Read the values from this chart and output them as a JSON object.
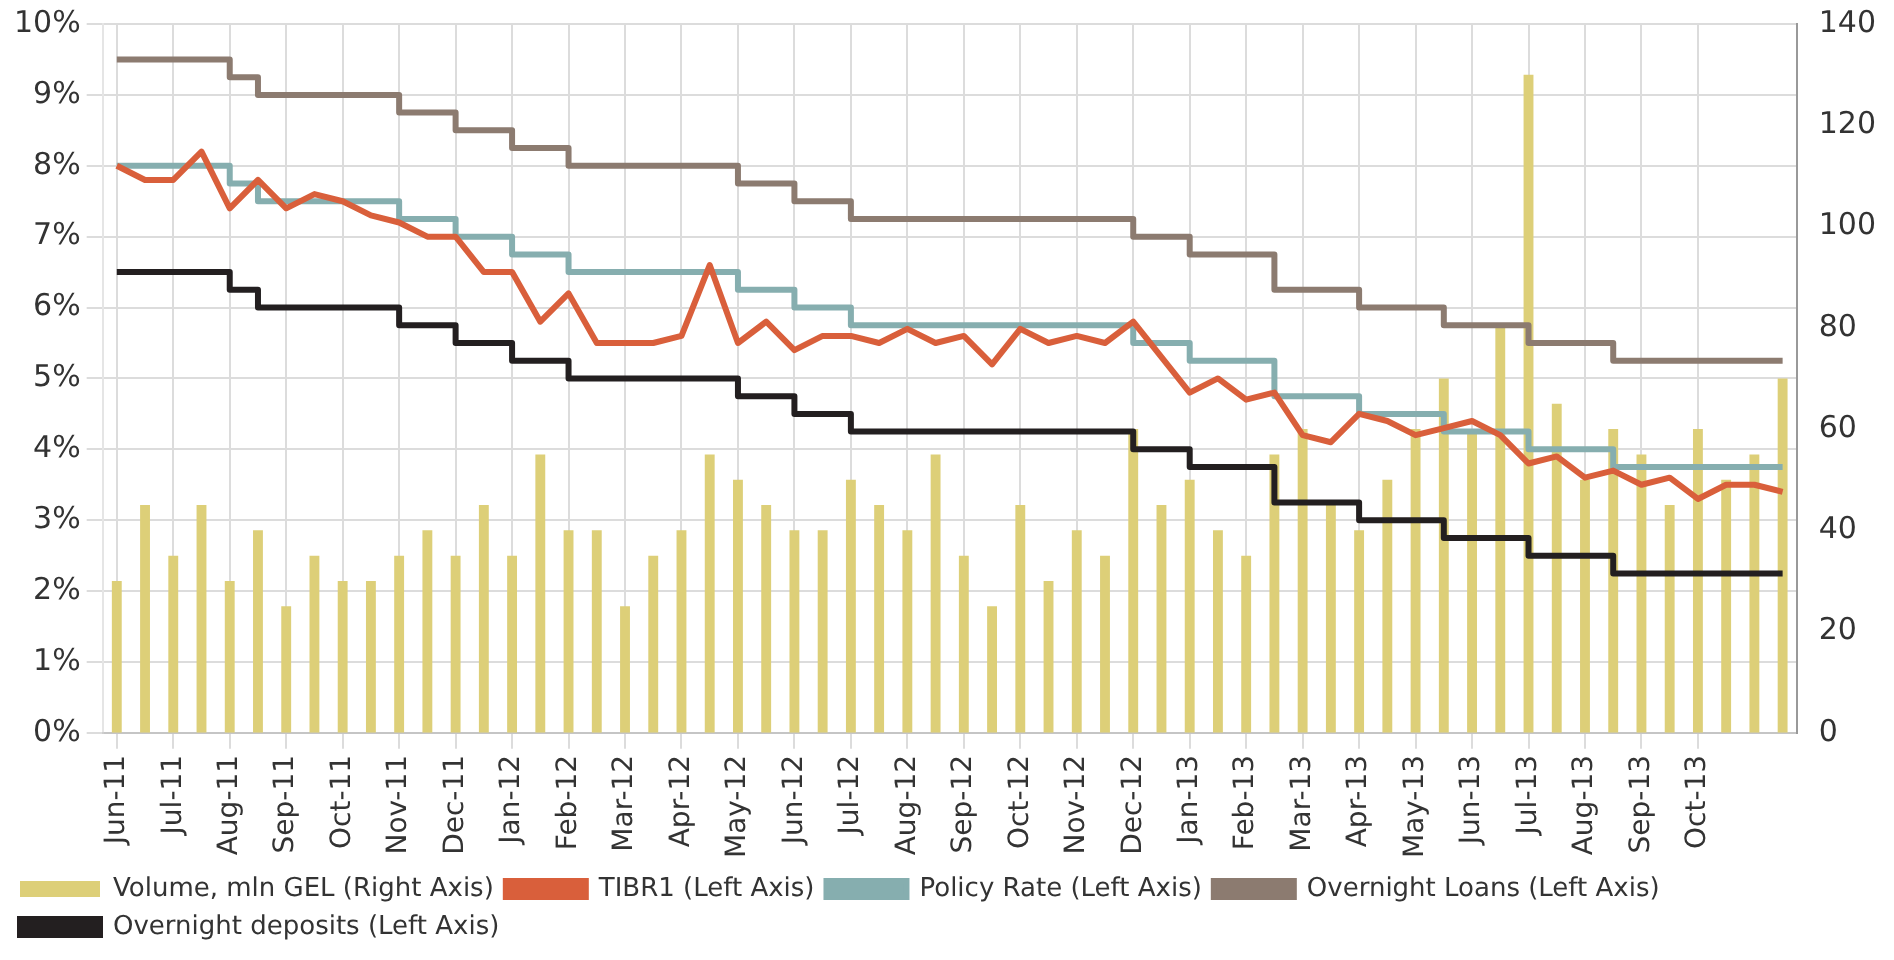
{
  "chart_data": {
    "type": "bar",
    "categories": [
      "Jun-11",
      null,
      "Jul-11",
      null,
      "Aug-11",
      null,
      "Sep-11",
      null,
      "Oct-11",
      null,
      "Nov-11",
      null,
      "Dec-11",
      null,
      "Jan-12",
      null,
      "Feb-12",
      null,
      "Mar-12",
      null,
      "Apr-12",
      null,
      "May-12",
      null,
      "Jun-12",
      null,
      "Jul-12",
      null,
      "Aug-12",
      null,
      "Sep-12",
      null,
      "Oct-12",
      null,
      "Nov-12",
      null,
      "Dec-12",
      null,
      "Jan-13",
      null,
      "Feb-13",
      null,
      "Mar-13",
      null,
      "Apr-13",
      null,
      "May-13",
      null,
      "Jun-13",
      null,
      "Jul-13",
      null,
      "Aug-13",
      null,
      "Sep-13",
      null,
      "Oct-13",
      null,
      null,
      null
    ],
    "series": [
      {
        "name": "Volume, mln GEL (Right Axis)",
        "axis": "y2",
        "color": "#ddcf78",
        "values": [
          30,
          45,
          35,
          45,
          30,
          40,
          25,
          35,
          30,
          30,
          35,
          40,
          35,
          45,
          35,
          55,
          40,
          40,
          25,
          35,
          40,
          55,
          50,
          45,
          40,
          40,
          50,
          45,
          40,
          55,
          35,
          25,
          45,
          30,
          40,
          35,
          60,
          45,
          50,
          40,
          35,
          55,
          60,
          45,
          40,
          50,
          60,
          70,
          60,
          80,
          130,
          65,
          50,
          60,
          55,
          45,
          60,
          50,
          55,
          70
        ]
      },
      {
        "name": "TIBR1 (Left Axis)",
        "type": "line",
        "color": "#d95f3b",
        "values": [
          8.0,
          7.8,
          7.8,
          8.2,
          7.4,
          7.8,
          7.4,
          7.6,
          7.5,
          7.3,
          7.2,
          7.0,
          7.0,
          6.5,
          6.5,
          5.8,
          6.2,
          5.5,
          5.5,
          5.5,
          5.6,
          6.6,
          5.5,
          5.8,
          5.4,
          5.6,
          5.6,
          5.5,
          5.7,
          5.5,
          5.6,
          5.2,
          5.7,
          5.5,
          5.6,
          5.5,
          5.8,
          5.3,
          4.8,
          5.0,
          4.7,
          4.8,
          4.2,
          4.1,
          4.5,
          4.4,
          4.2,
          4.3,
          4.4,
          4.2,
          3.8,
          3.9,
          3.6,
          3.7,
          3.5,
          3.6,
          3.3,
          3.5,
          3.5,
          3.4
        ]
      },
      {
        "name": "Policy Rate (Left Axis)",
        "type": "step",
        "color": "#86aeaf",
        "values": [
          8,
          8,
          8,
          8,
          7.75,
          7.5,
          7.5,
          7.5,
          7.5,
          7.5,
          7.25,
          7.25,
          7,
          7,
          6.75,
          6.75,
          6.5,
          6.5,
          6.5,
          6.5,
          6.5,
          6.5,
          6.25,
          6.25,
          6,
          6,
          5.75,
          5.75,
          5.75,
          5.75,
          5.75,
          5.75,
          5.75,
          5.75,
          5.75,
          5.75,
          5.5,
          5.5,
          5.25,
          5.25,
          5.25,
          4.75,
          4.75,
          4.75,
          4.5,
          4.5,
          4.5,
          4.25,
          4.25,
          4.25,
          4,
          4,
          4,
          3.75,
          3.75,
          3.75,
          3.75,
          3.75,
          3.75,
          3.75
        ]
      },
      {
        "name": "Overnight Loans (Left Axis)",
        "type": "step",
        "color": "#8c7b70",
        "values": [
          9.5,
          9.5,
          9.5,
          9.5,
          9.25,
          9,
          9,
          9,
          9,
          9,
          8.75,
          8.75,
          8.5,
          8.5,
          8.25,
          8.25,
          8,
          8,
          8,
          8,
          8,
          8,
          7.75,
          7.75,
          7.5,
          7.5,
          7.25,
          7.25,
          7.25,
          7.25,
          7.25,
          7.25,
          7.25,
          7.25,
          7.25,
          7.25,
          7,
          7,
          6.75,
          6.75,
          6.75,
          6.25,
          6.25,
          6.25,
          6,
          6,
          6,
          5.75,
          5.75,
          5.75,
          5.5,
          5.5,
          5.5,
          5.25,
          5.25,
          5.25,
          5.25,
          5.25,
          5.25,
          5.25
        ]
      },
      {
        "name": "Overnight deposits (Left Axis)",
        "type": "step",
        "color": "#231f20",
        "values": [
          6.5,
          6.5,
          6.5,
          6.5,
          6.25,
          6,
          6,
          6,
          6,
          6,
          5.75,
          5.75,
          5.5,
          5.5,
          5.25,
          5.25,
          5,
          5,
          5,
          5,
          5,
          5,
          4.75,
          4.75,
          4.5,
          4.5,
          4.25,
          4.25,
          4.25,
          4.25,
          4.25,
          4.25,
          4.25,
          4.25,
          4.25,
          4.25,
          4,
          4,
          3.75,
          3.75,
          3.75,
          3.25,
          3.25,
          3.25,
          3,
          3,
          3,
          2.75,
          2.75,
          2.75,
          2.5,
          2.5,
          2.5,
          2.25,
          2.25,
          2.25,
          2.25,
          2.25,
          2.25,
          2.25
        ]
      }
    ],
    "ylim": [
      0,
      10
    ],
    "yticks": [
      {
        "value": 0,
        "label": "0%"
      },
      {
        "value": 1,
        "label": "1%"
      },
      {
        "value": 2,
        "label": "2%"
      },
      {
        "value": 3,
        "label": "3%"
      },
      {
        "value": 4,
        "label": "4%"
      },
      {
        "value": 5,
        "label": "5%"
      },
      {
        "value": 6,
        "label": "6%"
      },
      {
        "value": 7,
        "label": "7%"
      },
      {
        "value": 8,
        "label": "8%"
      },
      {
        "value": 9,
        "label": "9%"
      },
      {
        "value": 10,
        "label": "10%"
      }
    ],
    "y2lim": [
      0,
      140
    ],
    "y2ticks": [
      0,
      20,
      40,
      60,
      80,
      100,
      120,
      140
    ],
    "grid": true,
    "legend": "bottom",
    "marker": "none"
  }
}
